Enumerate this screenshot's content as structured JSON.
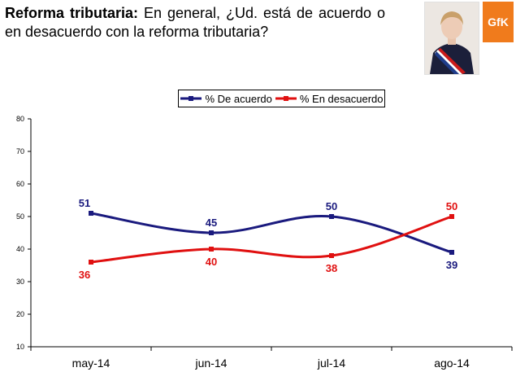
{
  "header": {
    "title_bold": "Reforma tributaria:",
    "question": " En general, ¿Ud. está de acuerdo o en desacuerdo con la reforma tributaria?"
  },
  "logo": {
    "text": "GfK"
  },
  "chart_data": {
    "type": "line",
    "categories": [
      "may-14",
      "jun-14",
      "jul-14",
      "ago-14"
    ],
    "series": [
      {
        "name": "% De acuerdo",
        "values": [
          51,
          45,
          50,
          39
        ],
        "color": "#1a1a7e"
      },
      {
        "name": "% En desacuerdo",
        "values": [
          36,
          40,
          38,
          50
        ],
        "color": "#e01010"
      }
    ],
    "y_ticks": [
      "10",
      "20",
      "30",
      "40",
      "50",
      "60",
      "70",
      "80"
    ],
    "ylim": [
      10,
      80
    ],
    "title": "",
    "xlabel": "",
    "ylabel": "",
    "legend": "top-center"
  }
}
